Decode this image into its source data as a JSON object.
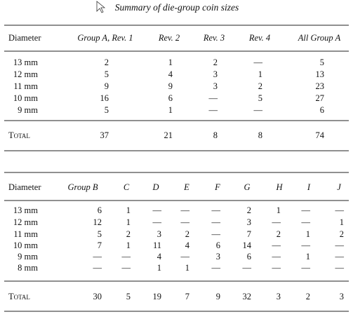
{
  "title": "Summary of die-group coin sizes",
  "table1": {
    "header": [
      "Diameter",
      "Group A, Rev. 1",
      "Rev. 2",
      "Rev. 3",
      "Rev. 4",
      "All Group A"
    ],
    "rows": [
      [
        "13 mm",
        2,
        1,
        2,
        "—",
        5
      ],
      [
        "12 mm",
        5,
        4,
        3,
        1,
        13
      ],
      [
        "11 mm",
        9,
        9,
        3,
        2,
        23
      ],
      [
        "10 mm",
        16,
        6,
        "—",
        5,
        27
      ],
      [
        "9 mm",
        5,
        1,
        "—",
        "—",
        6
      ]
    ],
    "total": [
      "Total",
      37,
      21,
      8,
      8,
      74
    ]
  },
  "table2": {
    "header": [
      "Diameter",
      "Group B",
      "C",
      "D",
      "E",
      "F",
      "G",
      "H",
      "I",
      "J"
    ],
    "rows": [
      [
        "13 mm",
        6,
        1,
        "—",
        "—",
        "—",
        2,
        1,
        "—",
        "—"
      ],
      [
        "12 mm",
        12,
        1,
        "—",
        "—",
        "—",
        3,
        "—",
        "—",
        1
      ],
      [
        "11 mm",
        5,
        2,
        3,
        2,
        "—",
        7,
        2,
        1,
        2
      ],
      [
        "10 mm",
        7,
        1,
        11,
        4,
        6,
        14,
        "—",
        "—",
        "—"
      ],
      [
        "9 mm",
        "—",
        "—",
        4,
        "—",
        3,
        6,
        "—",
        1,
        "—"
      ],
      [
        "8 mm",
        "—",
        "—",
        1,
        1,
        "—",
        "—",
        "—",
        "—",
        "—"
      ]
    ],
    "total": [
      "Total",
      30,
      5,
      19,
      7,
      9,
      32,
      3,
      2,
      3
    ]
  }
}
